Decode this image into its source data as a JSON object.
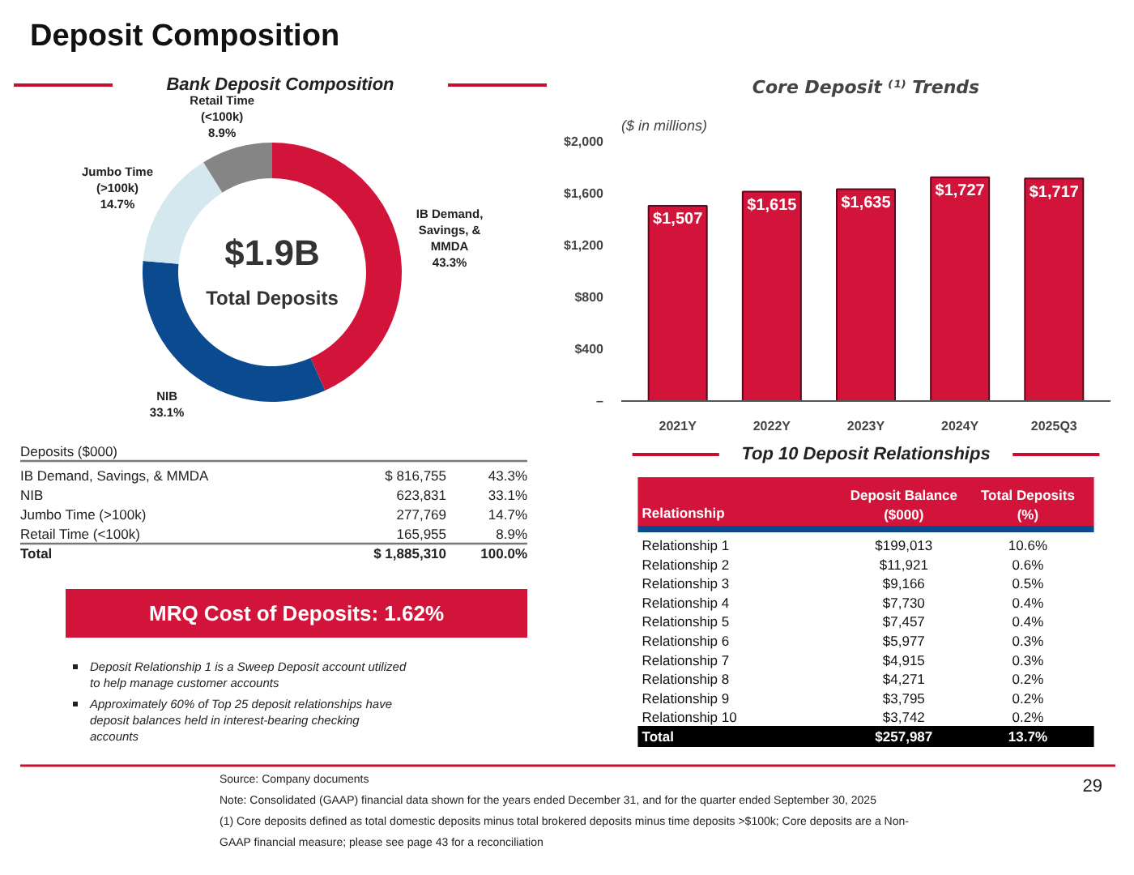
{
  "chart_data": [
    {
      "type": "other",
      "title": "Deposit Composition"
    },
    {
      "type": "donut",
      "title": "Bank Deposit Composition",
      "categories": [
        "IB Demand, Savings, & MMDA",
        "NIB",
        "Jumbo Time (>100k)",
        "Retail Time (<100k)"
      ],
      "values": [
        43.3,
        33.1,
        14.7,
        8.9
      ],
      "colors": [
        "#d2143a",
        "#0b4a8f",
        "#d5e8ef",
        "#858585"
      ],
      "value_labels": [
        "43.3%",
        "33.1%",
        "14.7%",
        "8.9%"
      ],
      "annotations": [
        "$1.9B",
        "Total Deposits"
      ]
    },
    {
      "type": "other",
      "title": "Deposits ($000)",
      "categories": [
        "IB Demand, Savings, & MMDA",
        "NIB",
        "Jumbo Time (>100k)",
        "Retail Time (<100k)",
        "Total"
      ],
      "series": [
        {
          "values": [
            816755,
            623831,
            277769,
            165955,
            1885310
          ],
          "value_labels": [
            "$ 816,755",
            "623,831",
            "277,769",
            "165,955",
            "$ 1,885,310"
          ]
        },
        {
          "values": [
            43.3,
            33.1,
            14.7,
            8.9,
            100.0
          ],
          "value_labels": [
            "43.3%",
            "33.1%",
            "14.7%",
            "8.9%",
            "100.0%"
          ]
        }
      ]
    },
    {
      "type": "other",
      "title": "MRQ Cost of Deposits: 1.62%",
      "color": "#d2143a",
      "annotations": [
        "Deposit Relationship 1 is a Sweep Deposit account utilized to help manage customer accounts",
        "Approximately 60% of Top 25 deposit relationships have deposit balances held in interest-bearing checking accounts"
      ]
    },
    {
      "type": "bar",
      "title": "Core Deposit ⁽¹⁾ Trends",
      "subtitle": "($ in millions)",
      "categories": [
        "2021Y",
        "2022Y",
        "2023Y",
        "2024Y",
        "2025Q3"
      ],
      "values": [
        1507,
        1615,
        1635,
        1727,
        1717
      ],
      "color": "#d2143a",
      "value_labels": [
        "$1,507",
        "$1,615",
        "$1,635",
        "$1,727",
        "$1,717"
      ],
      "ylim": [
        0,
        2000
      ],
      "yticks": [
        {
          "value": 0,
          "label": "–"
        },
        {
          "value": 400,
          "label": "$400"
        },
        {
          "value": 800,
          "label": "$800"
        },
        {
          "value": 1200,
          "label": "$1,200"
        },
        {
          "value": 1600,
          "label": "$1,600"
        },
        {
          "value": 2000,
          "label": "$2,000"
        }
      ],
      "grid": false
    },
    {
      "type": "other",
      "title": "Top 10 Deposit Relationships",
      "annotations": [
        "Relationship"
      ],
      "categories": [
        "Relationship 1",
        "Relationship 2",
        "Relationship 3",
        "Relationship 4",
        "Relationship 5",
        "Relationship 6",
        "Relationship 7",
        "Relationship 8",
        "Relationship 9",
        "Relationship 10",
        "Total"
      ],
      "series": [
        {
          "name": "Deposit Balance\n($000)",
          "values": [
            199013,
            11921,
            9166,
            7730,
            7457,
            5977,
            4915,
            4271,
            3795,
            3742,
            257987
          ],
          "value_labels": [
            "$199,013",
            "$11,921",
            "$9,166",
            "$7,730",
            "$7,457",
            "$5,977",
            "$4,915",
            "$4,271",
            "$3,795",
            "$3,742",
            "$257,987"
          ]
        },
        {
          "name": "Total Deposits\n(%)",
          "values": [
            10.6,
            0.6,
            0.5,
            0.4,
            0.4,
            0.3,
            0.3,
            0.2,
            0.2,
            0.2,
            13.7
          ],
          "value_labels": [
            "10.6%",
            "0.6%",
            "0.5%",
            "0.4%",
            "0.4%",
            "0.3%",
            "0.3%",
            "0.2%",
            "0.2%",
            "0.2%",
            "13.7%"
          ]
        }
      ]
    },
    {
      "type": "other",
      "annotations": [
        "Source: Company documents",
        "Note: Consolidated (GAAP) financial data shown for the years ended December 31, and for the quarter ended September 30, 2025",
        "(1) Core deposits defined as total domestic deposits minus total brokered deposits minus time deposits >$100k; Core deposits are a Non-",
        "GAAP financial measure; please see page 43 for a reconciliation",
        "29"
      ]
    }
  ]
}
